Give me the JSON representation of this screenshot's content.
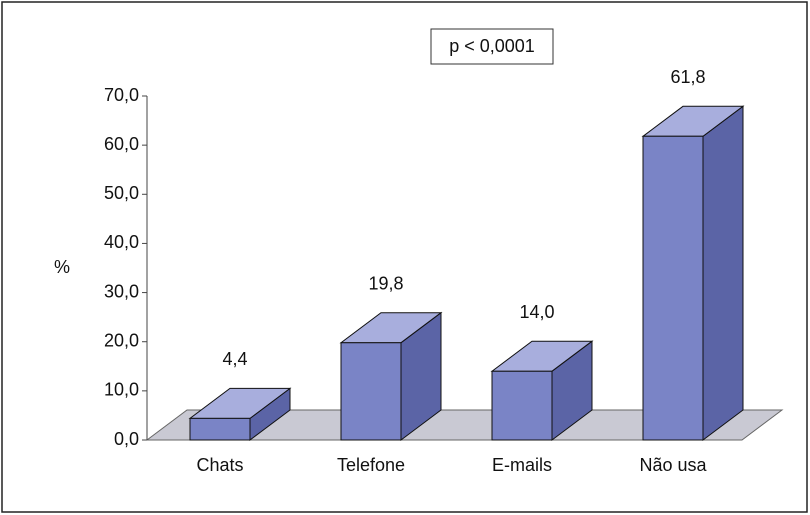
{
  "chart_data": {
    "type": "bar3d",
    "annotation": "p < 0,0001",
    "y_label": "%",
    "categories": [
      "Chats",
      "Telefone",
      "E-mails",
      "Não usa"
    ],
    "values": [
      4.4,
      19.8,
      14.0,
      61.8
    ],
    "value_labels": [
      "4,4",
      "19,8",
      "14,0",
      "61,8"
    ],
    "color": "#7a84c6",
    "ylim": [
      0,
      70
    ],
    "yticks": [
      {
        "value": 0,
        "label": "0,0"
      },
      {
        "value": 10,
        "label": "10,0"
      },
      {
        "value": 20,
        "label": "20,0"
      },
      {
        "value": 30,
        "label": "30,0"
      },
      {
        "value": 40,
        "label": "40,0"
      },
      {
        "value": 50,
        "label": "50,0"
      },
      {
        "value": 60,
        "label": "60,0"
      },
      {
        "value": 70,
        "label": "70,0"
      }
    ]
  }
}
